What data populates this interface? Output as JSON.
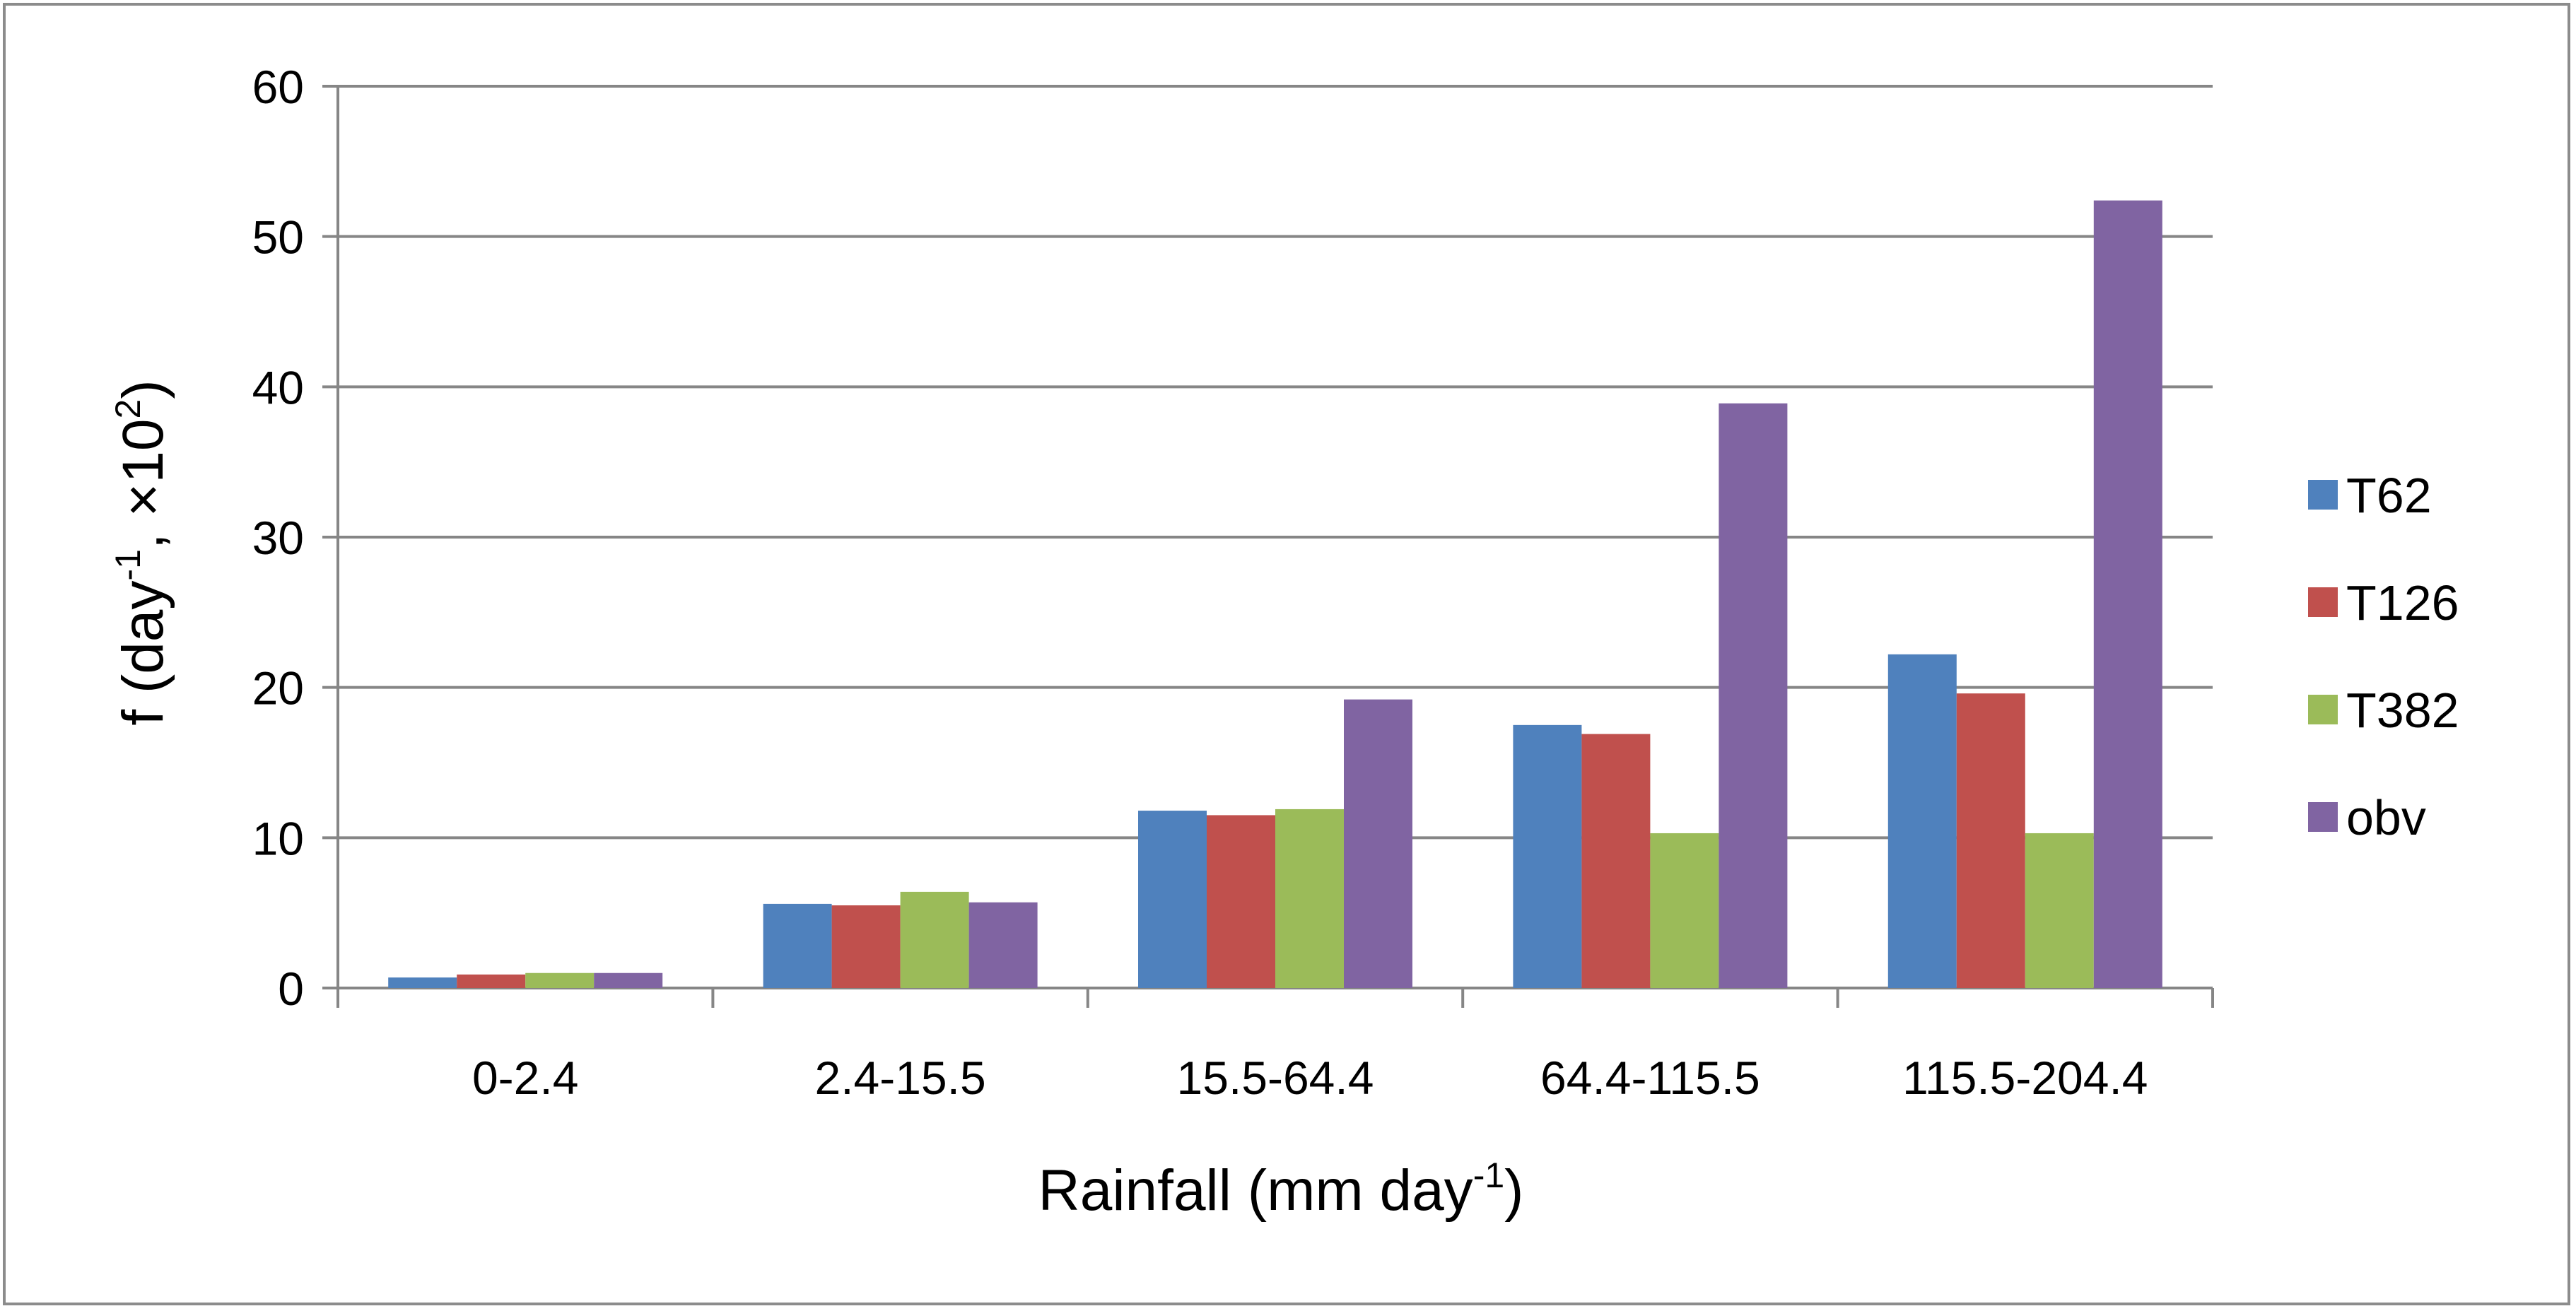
{
  "chart_data": {
    "type": "bar",
    "title": "",
    "categories": [
      "0-2.4",
      "2.4-15.5",
      "15.5-64.4",
      "64.4-115.5",
      "115.5-204.4"
    ],
    "series": [
      {
        "name": "T62",
        "color": "#4F81BD",
        "values": [
          0.7,
          5.6,
          11.8,
          17.5,
          22.2
        ]
      },
      {
        "name": "T126",
        "color": "#C0504D",
        "values": [
          0.9,
          5.5,
          11.5,
          16.9,
          19.6
        ]
      },
      {
        "name": "T382",
        "color": "#9BBB59",
        "values": [
          1.0,
          6.4,
          11.9,
          10.3,
          10.3
        ]
      },
      {
        "name": "obv",
        "color": "#8064A2",
        "values": [
          1.0,
          5.7,
          19.2,
          38.9,
          52.4
        ]
      }
    ],
    "ylim": [
      0,
      60
    ],
    "yticks": [
      0,
      10,
      20,
      30,
      40,
      50,
      60
    ],
    "grid": true,
    "legend_position": "right",
    "xlabel": {
      "main": "Rainfall (mm day",
      "sup": "-1",
      "close": ")"
    },
    "ylabel": {
      "part1": "f (day",
      "sup1": "-1",
      "part2": ", ×10",
      "sup2": "2",
      "part3": ")"
    }
  }
}
